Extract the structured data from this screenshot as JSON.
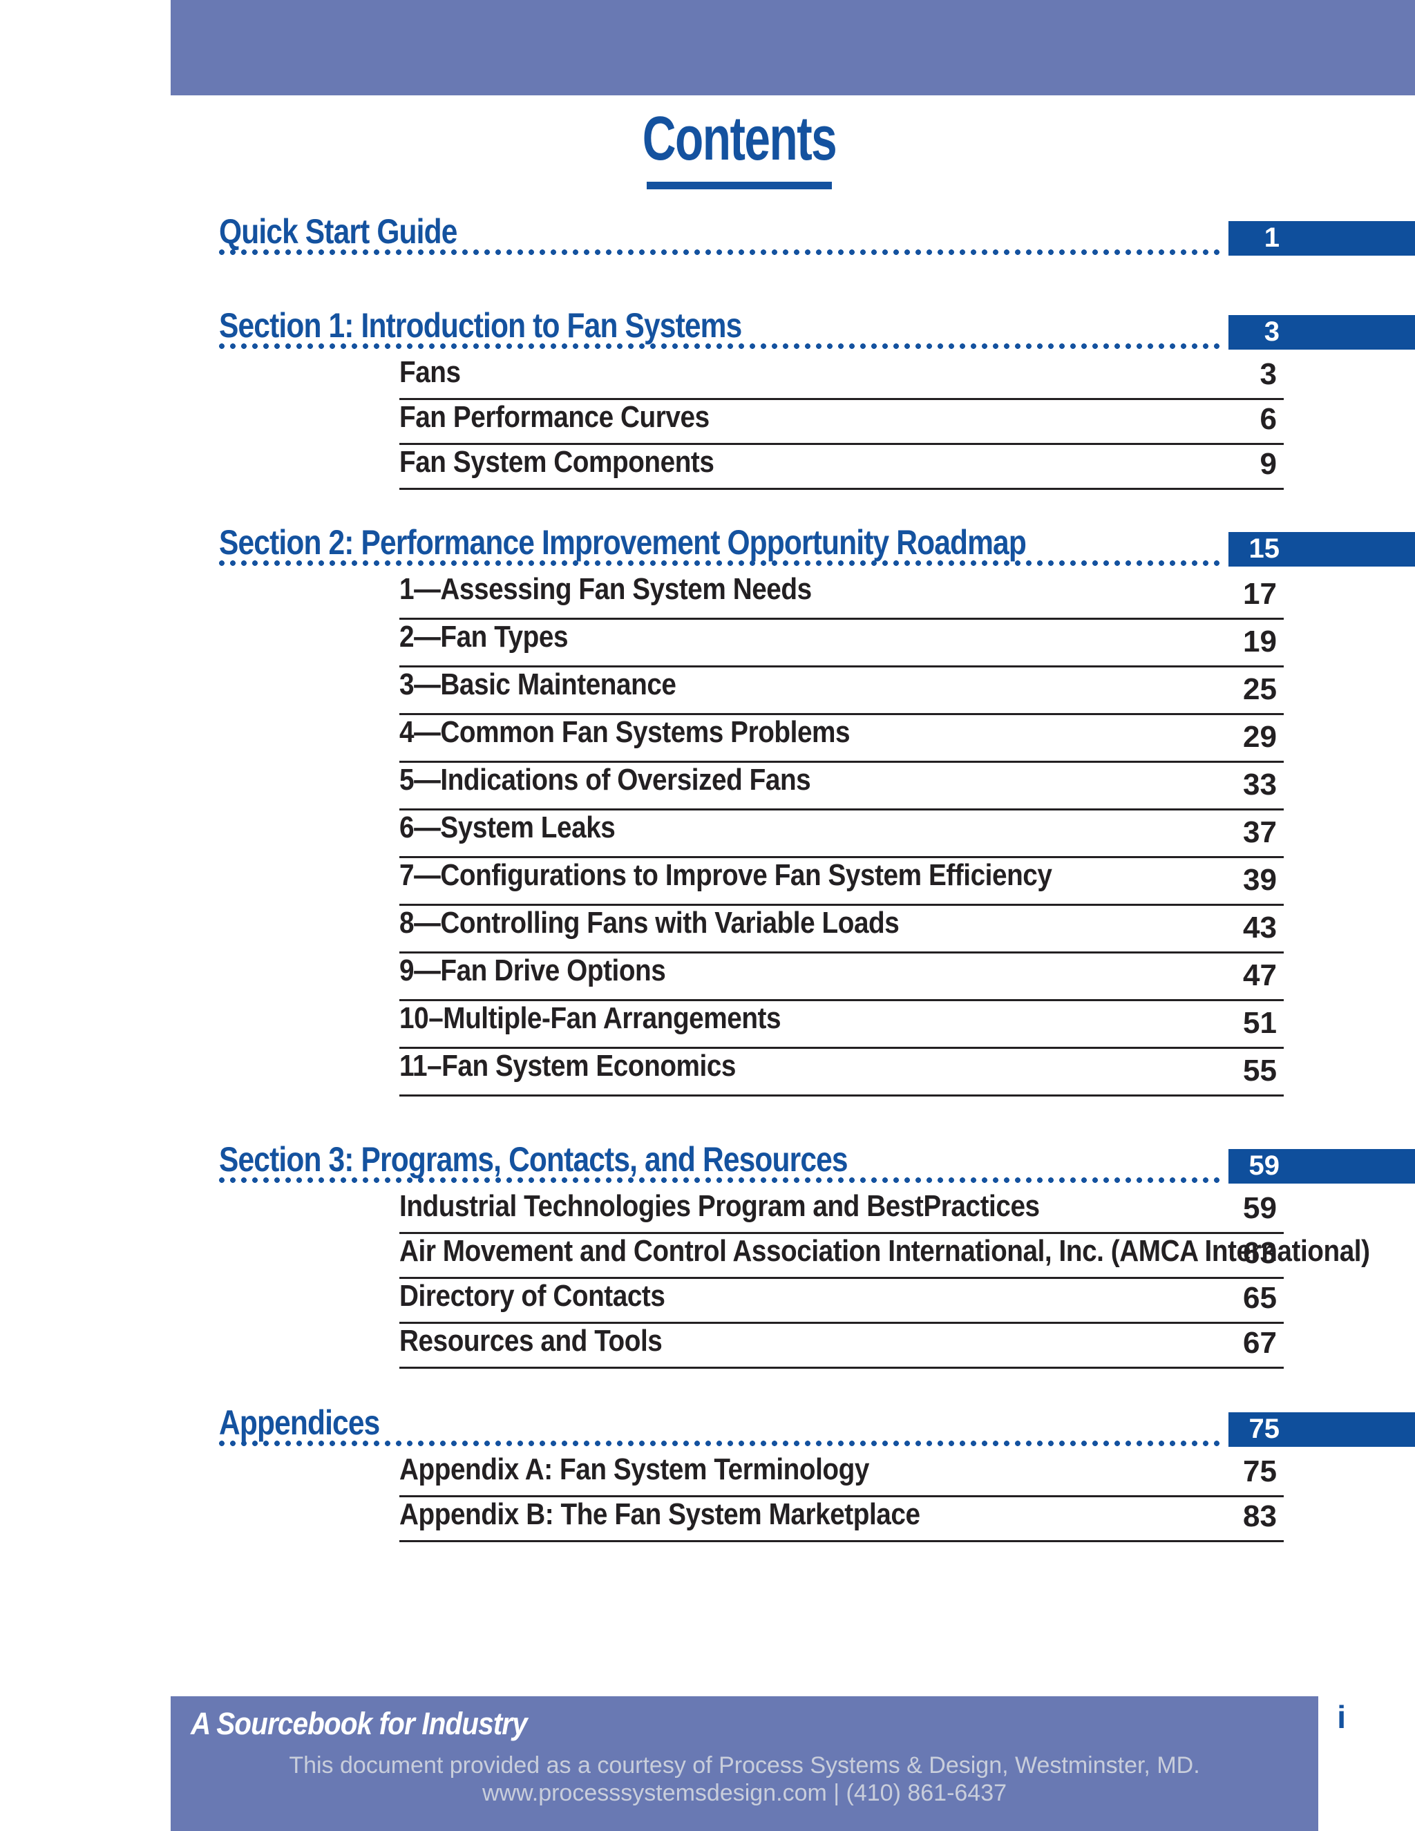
{
  "page": {
    "title": "Contents",
    "page_marker": "i"
  },
  "colors": {
    "band_purple": "#6979b3",
    "heading_blue": "#14529f",
    "page_box_blue": "#0f4f9c",
    "text_black": "#232022",
    "footer_gray": "#c9cedb"
  },
  "toc": {
    "sections": [
      {
        "title": "Quick Start Guide",
        "page": "1",
        "items": []
      },
      {
        "title": "Section 1: Introduction to Fan Systems",
        "page": "3",
        "items": [
          {
            "label": "Fans",
            "page": "3"
          },
          {
            "label": "Fan Performance Curves",
            "page": "6"
          },
          {
            "label": "Fan System Components",
            "page": "9"
          }
        ]
      },
      {
        "title": "Section 2: Performance Improvement Opportunity Roadmap",
        "page": "15",
        "items": [
          {
            "label": "1—Assessing Fan System Needs",
            "page": "17"
          },
          {
            "label": "2—Fan Types",
            "page": "19"
          },
          {
            "label": "3—Basic Maintenance",
            "page": "25"
          },
          {
            "label": "4—Common Fan Systems Problems",
            "page": "29"
          },
          {
            "label": "5—Indications of Oversized Fans",
            "page": "33"
          },
          {
            "label": "6—System Leaks",
            "page": "37"
          },
          {
            "label": "7—Configurations to Improve Fan System Efficiency",
            "page": "39"
          },
          {
            "label": "8—Controlling Fans with Variable Loads",
            "page": "43"
          },
          {
            "label": "9—Fan Drive Options",
            "page": "47"
          },
          {
            "label": "10–Multiple-Fan Arrangements",
            "page": "51"
          },
          {
            "label": "11–Fan System Economics",
            "page": "55"
          }
        ]
      },
      {
        "title": "Section 3: Programs, Contacts, and Resources",
        "page": "59",
        "items": [
          {
            "label": "Industrial Technologies Program and BestPractices",
            "page": "59"
          },
          {
            "label": "Air Movement and Control Association International, Inc. (AMCA International)",
            "page": "63"
          },
          {
            "label": "Directory of Contacts",
            "page": "65"
          },
          {
            "label": "Resources and Tools",
            "page": "67"
          }
        ]
      },
      {
        "title": "Appendices",
        "page": "75",
        "items": [
          {
            "label": "Appendix A: Fan System Terminology",
            "page": "75"
          },
          {
            "label": "Appendix B: The Fan System Marketplace",
            "page": "83"
          }
        ]
      }
    ]
  },
  "footer": {
    "tagline": "A Sourcebook for Industry",
    "courtesy_line1": "This document provided as a courtesy of Process Systems & Design, Westminster, MD.",
    "courtesy_line2": "www.processsystemsdesign.com | (410) 861-6437"
  }
}
